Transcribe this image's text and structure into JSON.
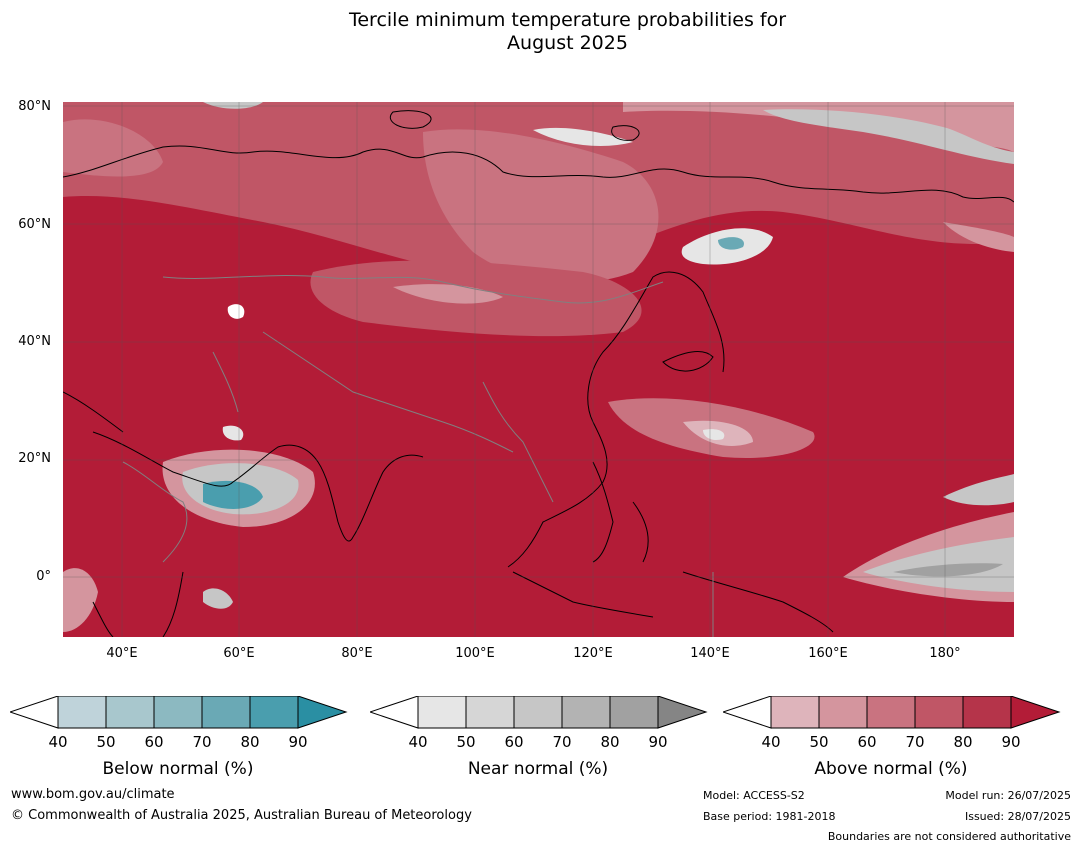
{
  "title_line1": "Tercile minimum temperature probabilities for",
  "title_line2": "August 2025",
  "lat_labels": [
    "80°N",
    "60°N",
    "40°N",
    "20°N",
    "0°"
  ],
  "lon_labels": [
    "40°E",
    "60°E",
    "80°E",
    "100°E",
    "120°E",
    "140°E",
    "160°E",
    "180°"
  ],
  "legend": {
    "below": {
      "label": "Below normal (%)",
      "ticks": [
        "40",
        "50",
        "60",
        "70",
        "80",
        "90"
      ],
      "colors": [
        "#ffffff",
        "#bfd3da",
        "#a8c7cd",
        "#8cb9c1",
        "#6aa9b5",
        "#4a9eae",
        "#2a8fa3"
      ]
    },
    "near": {
      "label": "Near normal (%)",
      "ticks": [
        "40",
        "50",
        "60",
        "70",
        "80",
        "90"
      ],
      "colors": [
        "#ffffff",
        "#e6e6e6",
        "#d6d6d6",
        "#c6c6c6",
        "#b3b3b3",
        "#a1a1a1",
        "#858585"
      ]
    },
    "above": {
      "label": "Above normal (%)",
      "ticks": [
        "40",
        "50",
        "60",
        "70",
        "80",
        "90"
      ],
      "colors": [
        "#ffffff",
        "#deb4bb",
        "#d4959e",
        "#c97380",
        "#c05666",
        "#b5344a",
        "#b31c37"
      ]
    }
  },
  "footer": {
    "website": "www.bom.gov.au/climate",
    "copyright": "© Commonwealth of Australia 2025, Australian Bureau of Meteorology",
    "model": "Model: ACCESS-S2",
    "base_period": "Base period: 1981-2018",
    "model_run": "Model run: 26/07/2025",
    "issued": "Issued: 28/07/2025",
    "disclaimer": "Boundaries are not considered authoritative"
  },
  "map_colors": {
    "above_90": "#b31c37",
    "above_80": "#b5344a",
    "above_70": "#c05666",
    "above_60": "#c97380",
    "above_50": "#d4959e",
    "above_40": "#deb4bb",
    "near": "#c6c6c6",
    "near_dark": "#a1a1a1",
    "below": "#4a9eae"
  }
}
